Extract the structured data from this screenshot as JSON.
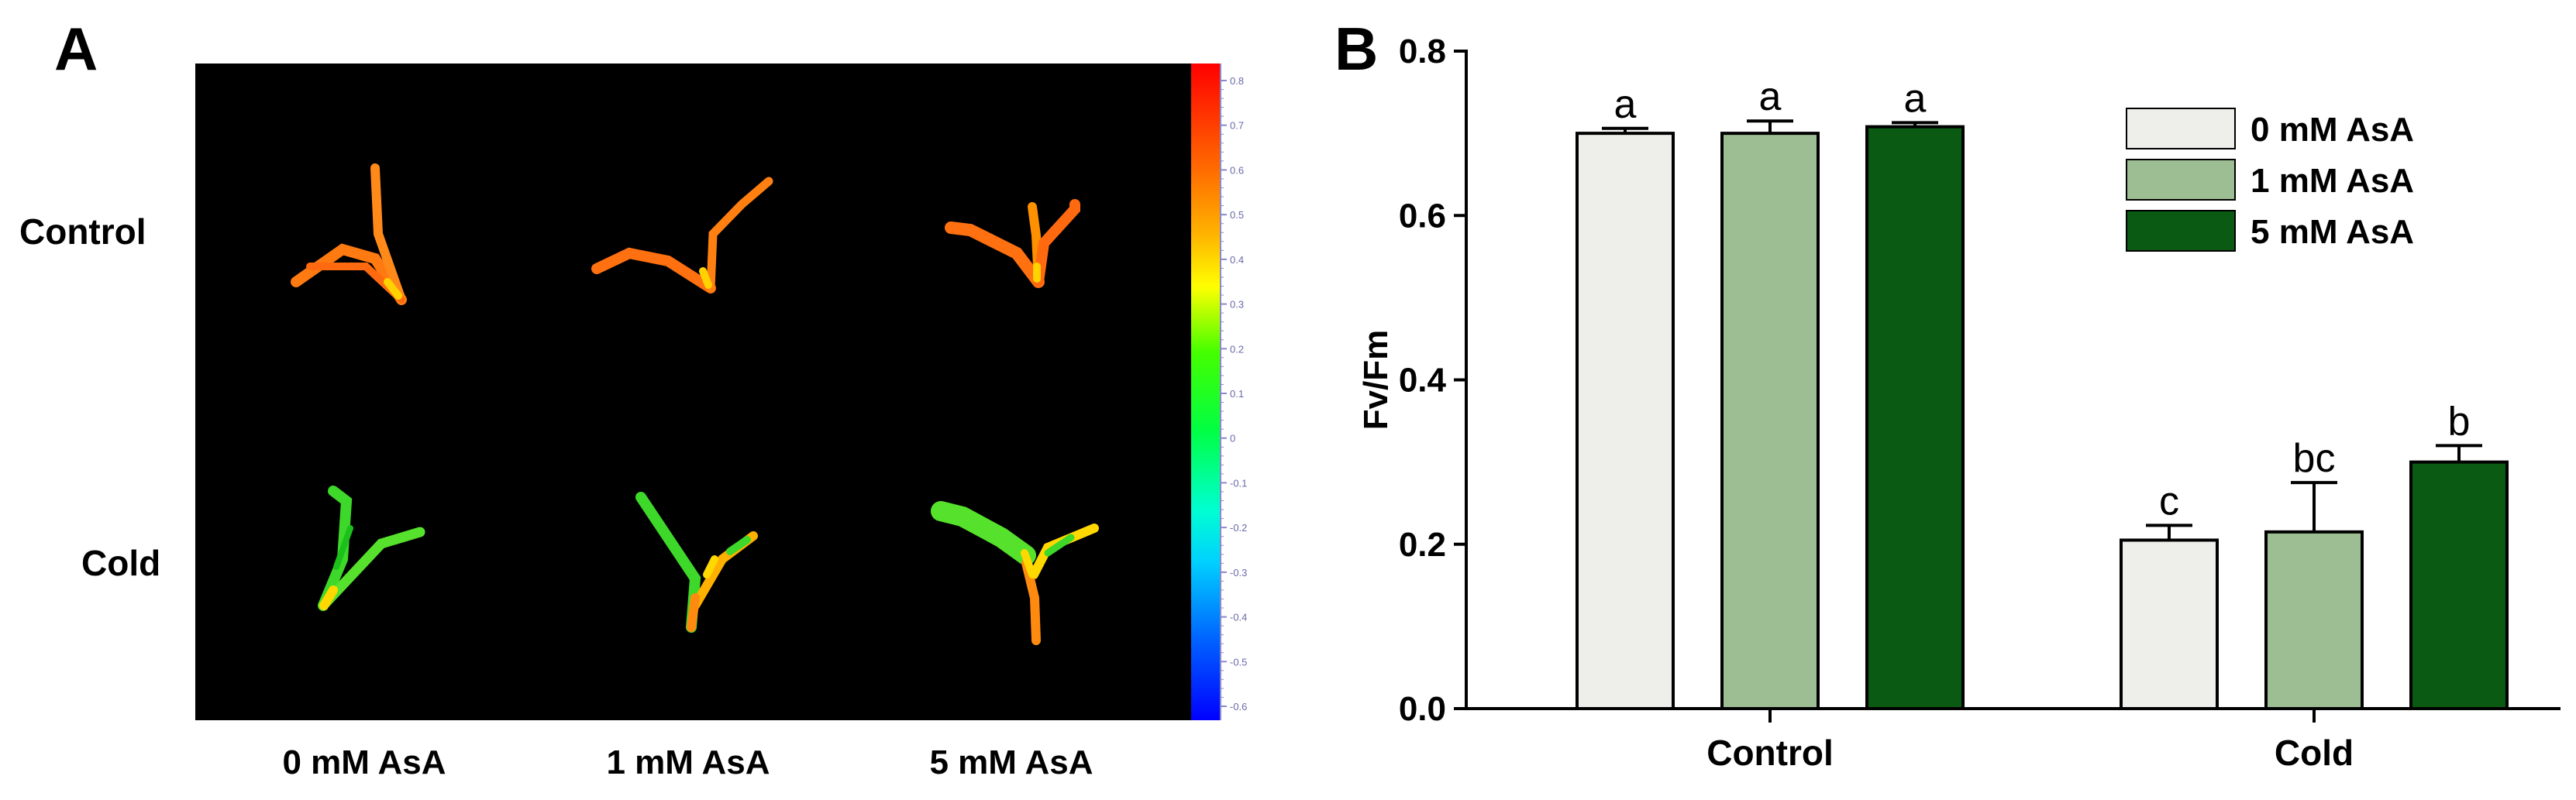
{
  "panel_a": {
    "letter": "A",
    "rows": [
      "Control",
      "Cold"
    ],
    "columns": [
      "0 mM AsA",
      "1 mM AsA",
      "5 mM AsA"
    ],
    "colorbar": {
      "ticks": [
        "0.8",
        "0.7",
        "0.6",
        "0.5",
        "0.4",
        "0.3",
        "0.2",
        "0.1",
        "0",
        "-0.1",
        "-0.2",
        "-0.3",
        "-0.4",
        "-0.5",
        "-0.6"
      ],
      "colors": {
        "top": "#ff0000",
        "upper": "#ff8c00",
        "mid_high": "#ffff00",
        "mid": "#00ff00",
        "mid_low": "#00ffff",
        "low": "#0000ff"
      }
    }
  },
  "chart_data": {
    "type": "bar",
    "letter": "B",
    "title": "",
    "xlabel": "",
    "ylabel": "Fv/Fm",
    "ylim": [
      0,
      0.8
    ],
    "yticks": [
      "0.0",
      "0.2",
      "0.4",
      "0.6",
      "0.8"
    ],
    "categories": [
      "Control",
      "Cold"
    ],
    "series": [
      {
        "name": "0 mM AsA",
        "color": "#eeefea",
        "values": [
          0.7,
          0.205
        ],
        "errors": [
          0.006,
          0.018
        ],
        "letters": [
          "a",
          "c"
        ]
      },
      {
        "name": "1 mM AsA",
        "color": "#9dbd93",
        "values": [
          0.7,
          0.215
        ],
        "errors": [
          0.015,
          0.06
        ],
        "letters": [
          "a",
          "bc"
        ]
      },
      {
        "name": "5 mM AsA",
        "color": "#0a5a13",
        "values": [
          0.708,
          0.3
        ],
        "errors": [
          0.005,
          0.02
        ],
        "letters": [
          "a",
          "b"
        ]
      }
    ],
    "legend_position": "top-right"
  }
}
